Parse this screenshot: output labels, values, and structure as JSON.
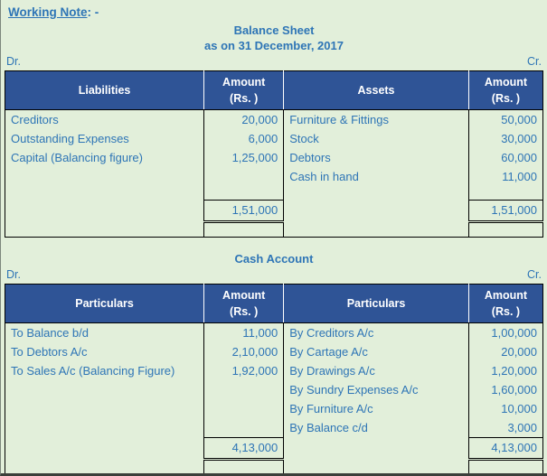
{
  "colors": {
    "page_background": "#E2EFDA",
    "table_header_background": "#2F5496",
    "table_header_text": "#FFFFFF",
    "text_blue": "#2E75B6",
    "table_border": "#000000"
  },
  "working_note": {
    "label": "Working Note",
    "suffix": ": -"
  },
  "amount_header": {
    "line1": "Amount",
    "line2": "(Rs. )"
  },
  "balance_sheet": {
    "title": "Balance Sheet",
    "subtitle": "as on 31 December, 2017",
    "dr": "Dr.",
    "cr": "Cr.",
    "left_header": "Liabilities",
    "right_header": "Assets",
    "rows": [
      {
        "left": "Creditors",
        "left_amount": "20,000",
        "right": "Furniture & Fittings",
        "right_amount": "50,000"
      },
      {
        "left": "Outstanding Expenses",
        "left_amount": "6,000",
        "right": "Stock",
        "right_amount": "30,000"
      },
      {
        "left": "Capital (Balancing figure)",
        "left_amount": "1,25,000",
        "right": "Debtors",
        "right_amount": "60,000"
      },
      {
        "left": "",
        "left_amount": "",
        "right": "Cash in hand",
        "right_amount": "11,000"
      }
    ],
    "total_left": "1,51,000",
    "total_right": "1,51,000"
  },
  "cash_account": {
    "title": "Cash Account",
    "dr": "Dr.",
    "cr": "Cr.",
    "left_header": "Particulars",
    "right_header": "Particulars",
    "rows": [
      {
        "left": "To Balance b/d",
        "left_amount": "11,000",
        "right": "By Creditors A/c",
        "right_amount": "1,00,000"
      },
      {
        "left": "To Debtors A/c",
        "left_amount": "2,10,000",
        "right": "By Cartage A/c",
        "right_amount": "20,000"
      },
      {
        "left": "To Sales A/c (Balancing Figure)",
        "left_amount": "1,92,000",
        "right": "By Drawings A/c",
        "right_amount": "1,20,000"
      },
      {
        "left": "",
        "left_amount": "",
        "right": "By Sundry Expenses A/c",
        "right_amount": "1,60,000"
      },
      {
        "left": "",
        "left_amount": "",
        "right": "By Furniture A/c",
        "right_amount": "10,000"
      },
      {
        "left": "",
        "left_amount": "",
        "right": "By Balance c/d",
        "right_amount": "3,000"
      }
    ],
    "total_left": "4,13,000",
    "total_right": "4,13,000"
  }
}
